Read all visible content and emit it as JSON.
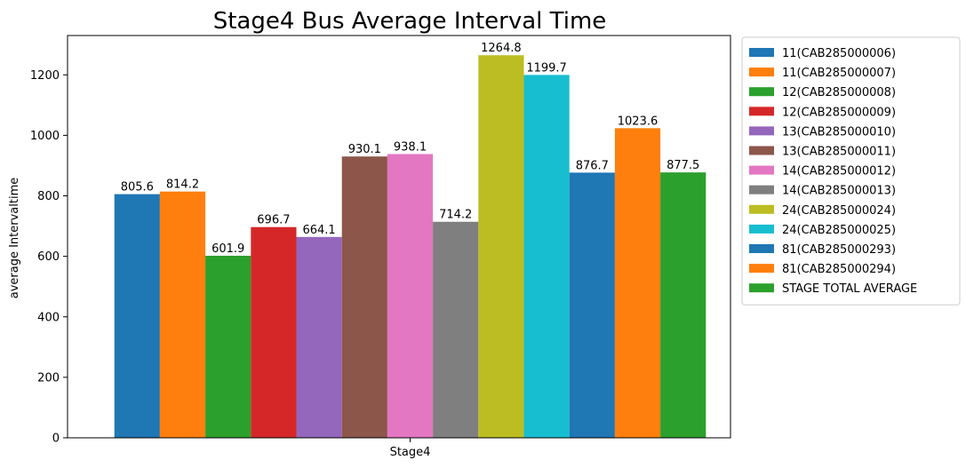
{
  "chart_data": {
    "type": "bar",
    "title": "Stage4 Bus Average Interval Time",
    "xlabel": "",
    "ylabel": "average Intervaltime",
    "categories": [
      "Stage4"
    ],
    "ylim": [
      0,
      1330
    ],
    "yticks": [
      0,
      200,
      400,
      600,
      800,
      1000,
      1200
    ],
    "grid": false,
    "legend_position": "outside-right",
    "series": [
      {
        "name": "11(CAB285000006)",
        "values": [
          805.6
        ],
        "label": "805.6",
        "color": "#1f77b4"
      },
      {
        "name": "11(CAB285000007)",
        "values": [
          814.2
        ],
        "label": "814.2",
        "color": "#ff7f0e"
      },
      {
        "name": "12(CAB285000008)",
        "values": [
          601.9
        ],
        "label": "601.9",
        "color": "#2ca02c"
      },
      {
        "name": "12(CAB285000009)",
        "values": [
          696.7
        ],
        "label": "696.7",
        "color": "#d62728"
      },
      {
        "name": "13(CAB285000010)",
        "values": [
          664.1
        ],
        "label": "664.1",
        "color": "#9467bd"
      },
      {
        "name": "13(CAB285000011)",
        "values": [
          930.1
        ],
        "label": "930.1",
        "color": "#8c564b"
      },
      {
        "name": "14(CAB285000012)",
        "values": [
          938.1
        ],
        "label": "938.1",
        "color": "#e377c2"
      },
      {
        "name": "14(CAB285000013)",
        "values": [
          714.2
        ],
        "label": "714.2",
        "color": "#7f7f7f"
      },
      {
        "name": "24(CAB285000024)",
        "values": [
          1264.8
        ],
        "label": "1264.8",
        "color": "#bcbd22"
      },
      {
        "name": "24(CAB285000025)",
        "values": [
          1199.7
        ],
        "label": "1199.7",
        "color": "#17becf"
      },
      {
        "name": "81(CAB285000293)",
        "values": [
          876.7
        ],
        "label": "876.7",
        "color": "#1f77b4"
      },
      {
        "name": "81(CAB285000294)",
        "values": [
          1023.6
        ],
        "label": "1023.6",
        "color": "#ff7f0e"
      },
      {
        "name": "STAGE TOTAL AVERAGE",
        "values": [
          877.5
        ],
        "label": "877.5",
        "color": "#2ca02c"
      }
    ]
  }
}
